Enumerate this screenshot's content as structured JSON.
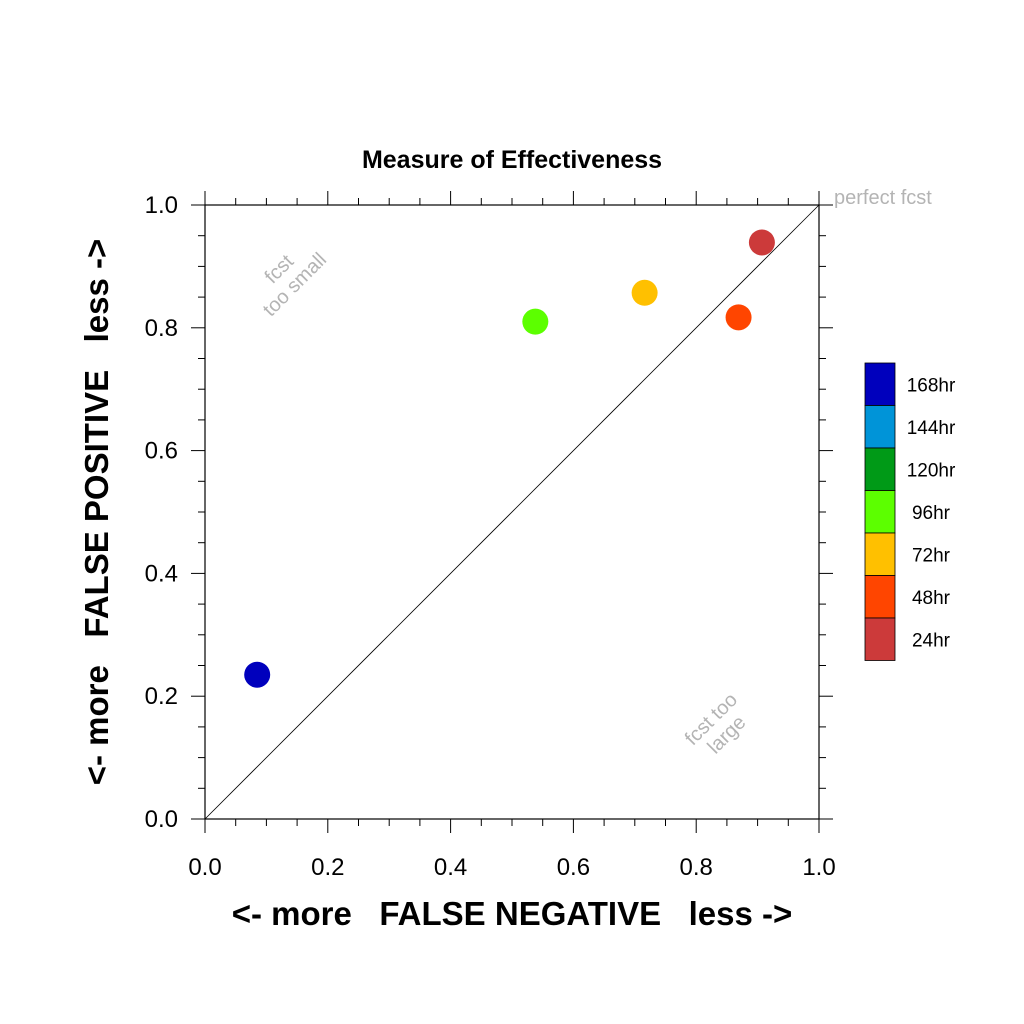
{
  "chart_data": {
    "type": "scatter",
    "title": "Measure of Effectiveness",
    "xlabel": "<- more   FALSE NEGATIVE   less ->",
    "ylabel": "<- more   FALSE POSITIVE   less ->",
    "xlim": [
      0.0,
      1.0
    ],
    "ylim": [
      0.0,
      1.0
    ],
    "x_ticks": [
      "0.0",
      "0.2",
      "0.4",
      "0.6",
      "0.8",
      "1.0"
    ],
    "y_ticks": [
      "0.0",
      "0.2",
      "0.4",
      "0.6",
      "0.8",
      "1.0"
    ],
    "grid": false,
    "diagonal_line": true,
    "annotations": {
      "perfect": "perfect fcst",
      "too_small_1": "fcst",
      "too_small_2": "too small",
      "too_large_1": "fcst too",
      "too_large_2": "large"
    },
    "series": [
      {
        "name": "24hr",
        "color": "#cc3a3a",
        "x": 0.907,
        "y": 0.939
      },
      {
        "name": "48hr",
        "color": "#ff4500",
        "x": 0.869,
        "y": 0.817
      },
      {
        "name": "72hr",
        "color": "#ffc000",
        "x": 0.716,
        "y": 0.857
      },
      {
        "name": "96hr",
        "color": "#5cff00",
        "x": 0.538,
        "y": 0.81
      },
      {
        "name": "168hr",
        "color": "#0000bd",
        "x": 0.085,
        "y": 0.235
      }
    ],
    "legend": {
      "placement": "right",
      "entries": [
        {
          "label": "168hr",
          "color": "#0000bd"
        },
        {
          "label": "144hr",
          "color": "#0094d8"
        },
        {
          "label": "120hr",
          "color": "#009a17"
        },
        {
          "label": "96hr",
          "color": "#5cff00"
        },
        {
          "label": "72hr",
          "color": "#ffc000"
        },
        {
          "label": "48hr",
          "color": "#ff4500"
        },
        {
          "label": "24hr",
          "color": "#cc3a3a"
        }
      ]
    }
  }
}
